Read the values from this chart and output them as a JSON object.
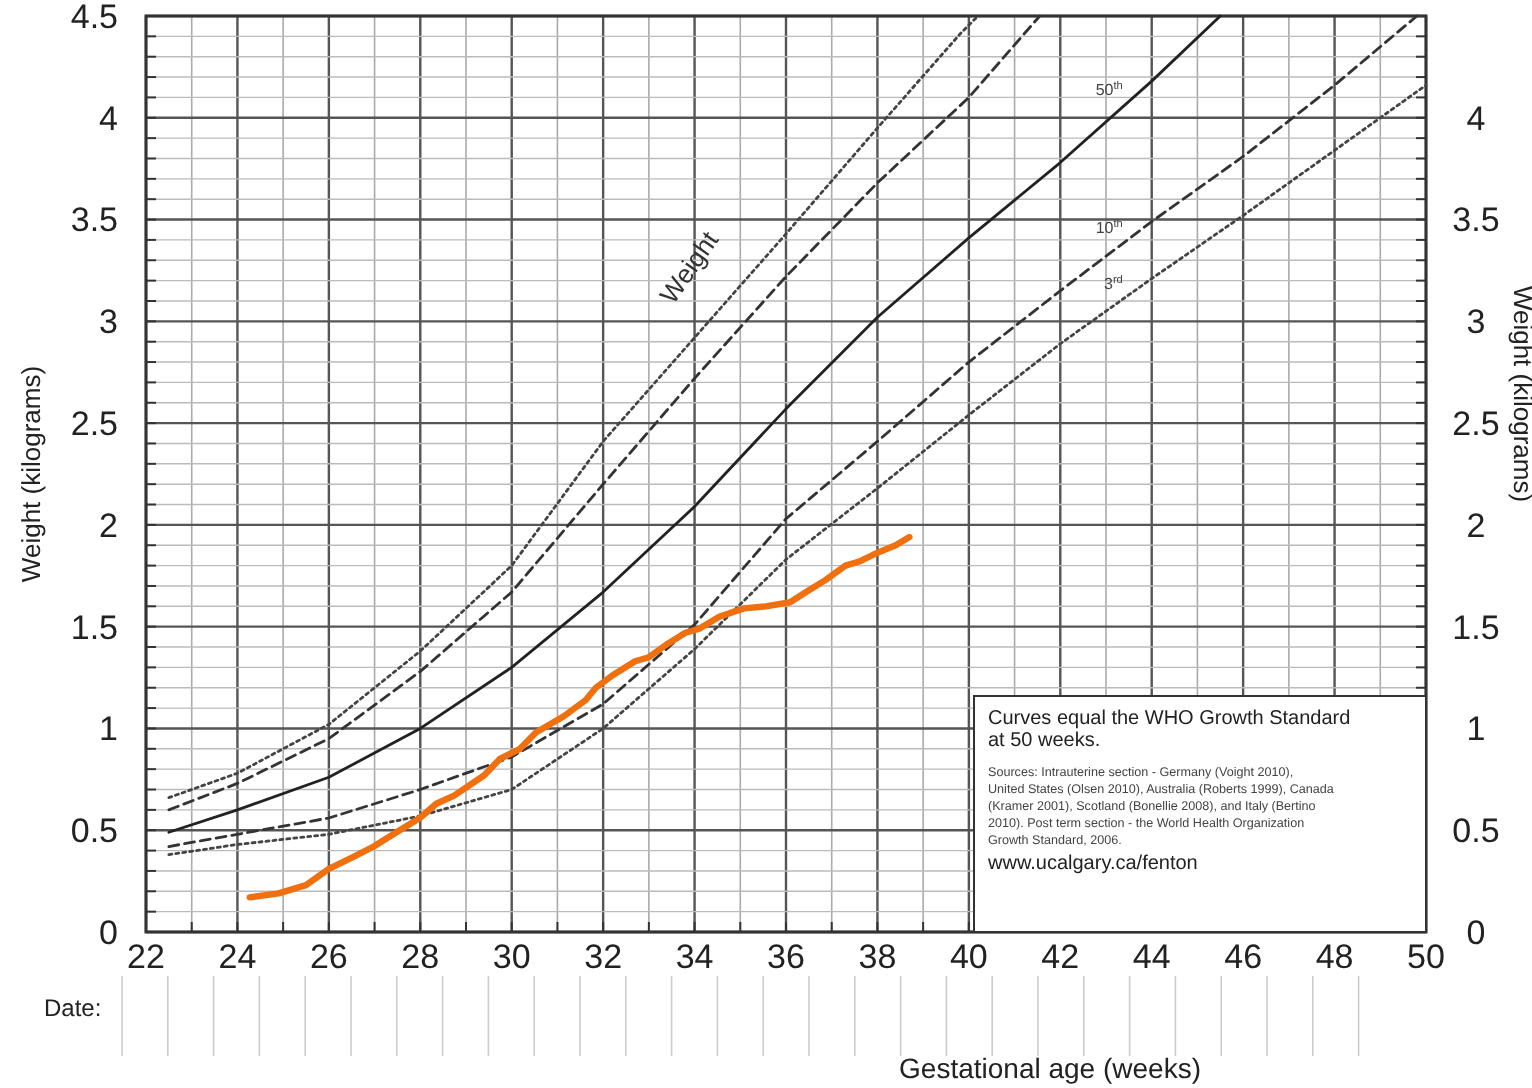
{
  "chart_data": {
    "type": "line",
    "xlabel": "Gestational age (weeks)",
    "ylabel": "Weight (kilograms)",
    "y2label": "Weight (kilograms)",
    "xlim": [
      22,
      50
    ],
    "ylim": [
      0,
      4.5
    ],
    "y2lim": [
      0,
      4.5
    ],
    "xticks": [
      22,
      {
        "value": 23,
        "label": null
      },
      24,
      {
        "value": 25,
        "label": null
      },
      26,
      {
        "value": 27,
        "label": null
      },
      28,
      {
        "value": 29,
        "label": null
      },
      30,
      {
        "value": 31,
        "label": null
      },
      32,
      {
        "value": 33,
        "label": null
      },
      34,
      {
        "value": 35,
        "label": null
      },
      36,
      {
        "value": 37,
        "label": null
      },
      38,
      {
        "value": 39,
        "label": null
      },
      40,
      {
        "value": 41,
        "label": null
      },
      42,
      {
        "value": 43,
        "label": null
      },
      44,
      {
        "value": 45,
        "label": null
      },
      46,
      {
        "value": 47,
        "label": null
      },
      48,
      {
        "value": 49,
        "label": null
      },
      50
    ],
    "yticks": [
      0,
      {
        "value": 0.1,
        "label": null
      },
      {
        "value": 0.2,
        "label": null
      },
      {
        "value": 0.3,
        "label": null
      },
      {
        "value": 0.4,
        "label": null
      },
      0.5,
      {
        "value": 0.6,
        "label": null
      },
      {
        "value": 0.7,
        "label": null
      },
      {
        "value": 0.8,
        "label": null
      },
      {
        "value": 0.9,
        "label": null
      },
      1,
      {
        "value": 1.1,
        "label": null
      },
      {
        "value": 1.2,
        "label": null
      },
      {
        "value": 1.3,
        "label": null
      },
      {
        "value": 1.4,
        "label": null
      },
      1.5,
      {
        "value": 1.6,
        "label": null
      },
      {
        "value": 1.7,
        "label": null
      },
      {
        "value": 1.8,
        "label": null
      },
      {
        "value": 1.9,
        "label": null
      },
      2,
      {
        "value": 2.1,
        "label": null
      },
      {
        "value": 2.2,
        "label": null
      },
      {
        "value": 2.3,
        "label": null
      },
      {
        "value": 2.4,
        "label": null
      },
      2.5,
      {
        "value": 2.6,
        "label": null
      },
      {
        "value": 2.7,
        "label": null
      },
      {
        "value": 2.8,
        "label": null
      },
      {
        "value": 2.9,
        "label": null
      },
      3,
      {
        "value": 3.1,
        "label": null
      },
      {
        "value": 3.2,
        "label": null
      },
      {
        "value": 3.3,
        "label": null
      },
      {
        "value": 3.4,
        "label": null
      },
      3.5,
      {
        "value": 3.6,
        "label": null
      },
      {
        "value": 3.7,
        "label": null
      },
      {
        "value": 3.8,
        "label": null
      },
      {
        "value": 3.9,
        "label": null
      },
      4,
      {
        "value": 4.1,
        "label": null
      },
      {
        "value": 4.2,
        "label": null
      },
      {
        "value": 4.3,
        "label": null
      },
      {
        "value": 4.4,
        "label": null
      },
      4.5
    ],
    "y2ticks": [
      0,
      {
        "value": 0.1,
        "label": null
      },
      {
        "value": 0.2,
        "label": null
      },
      {
        "value": 0.3,
        "label": null
      },
      {
        "value": 0.4,
        "label": null
      },
      0.5,
      {
        "value": 0.6,
        "label": null
      },
      {
        "value": 0.7,
        "label": null
      },
      {
        "value": 0.8,
        "label": null
      },
      {
        "value": 0.9,
        "label": null
      },
      1,
      {
        "value": 1.1,
        "label": null
      },
      {
        "value": 1.2,
        "label": null
      },
      {
        "value": 1.3,
        "label": null
      },
      {
        "value": 1.4,
        "label": null
      },
      1.5,
      {
        "value": 1.6,
        "label": null
      },
      {
        "value": 1.7,
        "label": null
      },
      {
        "value": 1.8,
        "label": null
      },
      {
        "value": 1.9,
        "label": null
      },
      2,
      {
        "value": 2.1,
        "label": null
      },
      {
        "value": 2.2,
        "label": null
      },
      {
        "value": 2.3,
        "label": null
      },
      {
        "value": 2.4,
        "label": null
      },
      2.5,
      {
        "value": 2.6,
        "label": null
      },
      {
        "value": 2.7,
        "label": null
      },
      {
        "value": 2.8,
        "label": null
      },
      {
        "value": 2.9,
        "label": null
      },
      3,
      {
        "value": 3.1,
        "label": null
      },
      {
        "value": 3.2,
        "label": null
      },
      {
        "value": 3.3,
        "label": null
      },
      {
        "value": 3.4,
        "label": null
      },
      3.5,
      {
        "value": 3.6,
        "label": null
      },
      {
        "value": 3.7,
        "label": null
      },
      {
        "value": 3.8,
        "label": null
      },
      {
        "value": 3.9,
        "label": null
      },
      4,
      {
        "value": 4.1,
        "label": null
      },
      {
        "value": 4.2,
        "label": null
      },
      {
        "value": 4.3,
        "label": null
      },
      {
        "value": 4.4,
        "label": null
      },
      {
        "value": 4.5,
        "label": null
      }
    ],
    "grid": true,
    "legend": false,
    "series": [
      {
        "color": "#444444",
        "line_style": "dotted",
        "x": [
          22.5,
          24,
          26,
          28,
          30,
          32,
          34,
          36,
          38,
          39.8,
          40.2
        ],
        "values": [
          0.66,
          0.78,
          1.02,
          1.38,
          1.8,
          2.41,
          2.92,
          3.43,
          3.95,
          4.41,
          4.5
        ]
      },
      {
        "color": "#333333",
        "line_style": "dashed",
        "x": [
          22.5,
          24,
          26,
          28,
          30,
          32,
          34,
          36,
          38,
          40,
          41.55
        ],
        "values": [
          0.6,
          0.73,
          0.95,
          1.28,
          1.67,
          2.2,
          2.72,
          3.22,
          3.68,
          4.1,
          4.5
        ]
      },
      {
        "name": "50$^{th}$",
        "color": "#222222",
        "line_style": "solid",
        "x": [
          22.5,
          24,
          26,
          28,
          30,
          32,
          34,
          36,
          38,
          40,
          42,
          44,
          45.5
        ],
        "values": [
          0.49,
          0.6,
          0.76,
          1.0,
          1.3,
          1.67,
          2.09,
          2.57,
          3.02,
          3.41,
          3.78,
          4.18,
          4.5
        ]
      },
      {
        "name": "10$^{th}$",
        "color": "#333333",
        "line_style": "dashed",
        "x": [
          22.5,
          24,
          26,
          28,
          30,
          32,
          34,
          36,
          38,
          40,
          42,
          44,
          46,
          48,
          49.8
        ],
        "values": [
          0.42,
          0.48,
          0.56,
          0.7,
          0.86,
          1.12,
          1.51,
          2.03,
          2.41,
          2.8,
          3.15,
          3.49,
          3.81,
          4.16,
          4.5
        ]
      },
      {
        "name": "3$^{rd}$",
        "color": "#444444",
        "line_style": "dotted",
        "x": [
          22.5,
          24,
          26,
          28,
          30,
          32,
          34,
          36,
          38,
          40,
          42,
          44,
          46,
          48,
          50
        ],
        "values": [
          0.38,
          0.43,
          0.48,
          0.57,
          0.7,
          1.0,
          1.39,
          1.83,
          2.18,
          2.54,
          2.89,
          3.21,
          3.52,
          3.84,
          4.16
        ]
      },
      {
        "color": "#f07010",
        "line_style": "solid",
        "x": [
          24.27,
          24.9,
          25.5,
          26.0,
          26.55,
          26.98,
          27.55,
          27.99,
          28.35,
          28.74,
          29.4,
          29.74,
          30.18,
          30.53,
          31.14,
          31.62,
          31.84,
          32.2,
          32.7,
          33.0,
          33.37,
          33.8,
          34.1,
          34.55,
          35.08,
          35.56,
          36.09,
          36.44,
          36.87,
          37.3,
          37.6,
          37.97,
          38.4,
          38.7
        ],
        "values": [
          0.17,
          0.19,
          0.23,
          0.31,
          0.37,
          0.42,
          0.5,
          0.56,
          0.63,
          0.67,
          0.77,
          0.85,
          0.9,
          0.98,
          1.06,
          1.14,
          1.2,
          1.26,
          1.33,
          1.35,
          1.41,
          1.47,
          1.49,
          1.55,
          1.59,
          1.6,
          1.62,
          1.67,
          1.73,
          1.8,
          1.82,
          1.86,
          1.9,
          1.94
        ]
      }
    ],
    "annotations": [
      "Weight",
      "Curves equal the WHO Growth Standard at 50 weeks.",
      "Sources: Intrauterine section - Germany (Voight 2010), United States (Olsen 2010), Australia (Roberts 1999), Canada (Kramer 2001), Scotland (Bonellie 2008), and Italy (Bertino 2010). Post term section - the World Health Organization Growth Standard, 2006.",
      "www.ucalgary.ca/fenton",
      "Date:"
    ]
  }
}
